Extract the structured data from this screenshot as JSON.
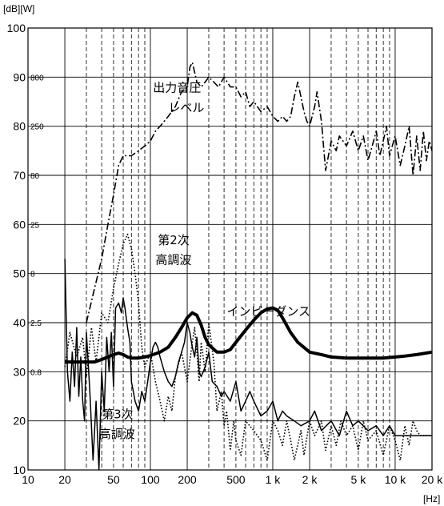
{
  "chart_data": {
    "type": "line",
    "title": "",
    "x_unit": "[Hz]",
    "y_unit_left": "[dB]",
    "y_unit_right": "[W]",
    "x_scale": "log",
    "xlim": [
      10,
      20000
    ],
    "ylim": [
      10,
      100
    ],
    "grid": true,
    "x_ticks": [
      {
        "v": 10,
        "label": "10"
      },
      {
        "v": 20,
        "label": "20"
      },
      {
        "v": 50,
        "label": "50"
      },
      {
        "v": 100,
        "label": "100"
      },
      {
        "v": 200,
        "label": "200"
      },
      {
        "v": 500,
        "label": "500"
      },
      {
        "v": 1000,
        "label": "1 k"
      },
      {
        "v": 2000,
        "label": "2 k"
      },
      {
        "v": 5000,
        "label": "5 k"
      },
      {
        "v": 10000,
        "label": "10 k"
      },
      {
        "v": 20000,
        "label": "20 k"
      }
    ],
    "y_ticks": [
      {
        "v": 10,
        "label": "10",
        "sub": ""
      },
      {
        "v": 20,
        "label": "20",
        "sub": ""
      },
      {
        "v": 30,
        "label": "30",
        "sub": "0.8"
      },
      {
        "v": 40,
        "label": "40",
        "sub": "2.5"
      },
      {
        "v": 50,
        "label": "50",
        "sub": "8"
      },
      {
        "v": 60,
        "label": "60",
        "sub": "25"
      },
      {
        "v": 70,
        "label": "70",
        "sub": "80"
      },
      {
        "v": 80,
        "label": "80",
        "sub": "250"
      },
      {
        "v": 90,
        "label": "90",
        "sub": "800"
      },
      {
        "v": 100,
        "label": "100",
        "sub": ""
      }
    ],
    "annotations": [
      {
        "text": "出力音圧",
        "x": 105,
        "y": 87
      },
      {
        "text": "レベル",
        "x": 140,
        "y": 83
      },
      {
        "text": "第2次",
        "x": 115,
        "y": 56
      },
      {
        "text": "高調波",
        "x": 110,
        "y": 52
      },
      {
        "text": "インピーダンス",
        "x": 420,
        "y": 41.5
      },
      {
        "text": "第3次",
        "x": 40,
        "y": 20.5
      },
      {
        "text": "高調波",
        "x": 38,
        "y": 16.5
      }
    ],
    "series": [
      {
        "name": "出力音圧レベル",
        "style": "dashdot",
        "width": 1.6,
        "x": [
          30,
          35,
          40,
          45,
          50,
          55,
          60,
          70,
          80,
          90,
          100,
          110,
          120,
          140,
          160,
          180,
          200,
          210,
          220,
          230,
          240,
          260,
          280,
          300,
          330,
          360,
          400,
          450,
          500,
          550,
          600,
          650,
          700,
          800,
          900,
          1000,
          1100,
          1200,
          1300,
          1400,
          1500,
          1600,
          1700,
          1800,
          1900,
          2000,
          2200,
          2300,
          2500,
          2700,
          2800,
          3000,
          3300,
          3500,
          4000,
          4500,
          5000,
          5500,
          6000,
          6500,
          7000,
          7500,
          8000,
          8500,
          9000,
          10000,
          11000,
          12000,
          13000,
          14000,
          15000,
          16000,
          17000,
          18000,
          19000,
          20000
        ],
        "y": [
          40,
          47,
          53,
          60,
          66,
          72,
          74,
          74,
          75,
          76,
          77,
          79,
          80,
          82,
          84,
          87,
          88,
          92,
          93,
          91,
          89,
          88,
          89,
          90,
          89,
          88,
          90,
          88,
          88,
          86,
          87,
          84,
          85,
          83,
          84,
          82,
          81,
          82,
          81,
          82,
          86,
          89,
          86,
          83,
          81,
          80,
          84,
          87,
          81,
          71,
          73,
          77,
          75,
          78,
          76,
          79,
          75,
          78,
          73,
          76,
          79,
          74,
          77,
          80,
          74,
          78,
          72,
          76,
          80,
          70,
          78,
          71,
          79,
          73,
          77,
          75
        ]
      },
      {
        "name": "第2次高調波",
        "style": "dotted",
        "width": 1.6,
        "x": [
          20,
          22,
          25,
          28,
          30,
          33,
          36,
          40,
          45,
          50,
          55,
          60,
          65,
          70,
          75,
          80,
          85,
          90,
          100,
          110,
          120,
          130,
          140,
          150,
          160,
          180,
          200,
          220,
          230,
          240,
          250,
          260,
          280,
          300,
          330,
          350,
          380,
          400,
          420,
          450,
          480,
          500,
          550,
          600,
          700,
          800,
          900,
          1000,
          1100,
          1200,
          1300,
          1400,
          1500,
          1700,
          1800,
          2000,
          2200,
          2500,
          2700,
          3000,
          3300,
          3600,
          4000,
          4500,
          5000,
          5500,
          6000,
          7000,
          8000,
          9000,
          10000,
          11000,
          12000,
          13000,
          14000,
          15000,
          16000,
          18000,
          20000
        ],
        "y": [
          31,
          38,
          33,
          37,
          29,
          39,
          32,
          42,
          40,
          47,
          52,
          56,
          58,
          55,
          50,
          44,
          35,
          31,
          34,
          28,
          24,
          20,
          25,
          22,
          29,
          34,
          28,
          36,
          39,
          34,
          28,
          36,
          30,
          40,
          32,
          22,
          26,
          19,
          22,
          14,
          20,
          16,
          13,
          20,
          18,
          16,
          12,
          20,
          18,
          15,
          20,
          16,
          12,
          18,
          13,
          20,
          17,
          20,
          14,
          19,
          15,
          20,
          17,
          19,
          14,
          20,
          16,
          18,
          13,
          19,
          16,
          12,
          19,
          15,
          20,
          18,
          17,
          17,
          17
        ]
      },
      {
        "name": "第3次高調波",
        "style": "solid",
        "width": 1.5,
        "x": [
          20,
          21,
          22,
          23,
          24,
          25,
          26,
          27,
          28,
          29,
          30,
          32,
          34,
          36,
          38,
          40,
          42,
          44,
          46,
          48,
          50,
          52,
          55,
          58,
          60,
          62,
          65,
          68,
          70,
          75,
          80,
          85,
          90,
          95,
          100,
          105,
          110,
          115,
          120,
          130,
          140,
          150,
          160,
          170,
          180,
          190,
          200,
          210,
          220,
          230,
          240,
          250,
          260,
          280,
          300,
          320,
          350,
          380,
          400,
          450,
          500,
          550,
          600,
          650,
          700,
          800,
          900,
          1000,
          1100,
          1200,
          1300,
          1500,
          1700,
          2000,
          2200,
          2500,
          3000,
          3500,
          4000,
          4500,
          5000,
          6000,
          7000,
          8000,
          9000,
          10000,
          12000,
          14000,
          16000,
          18000,
          20000
        ],
        "y": [
          53,
          30,
          24,
          34,
          27,
          39,
          25,
          33,
          24,
          20,
          38,
          26,
          12,
          24,
          10,
          30,
          22,
          37,
          30,
          38,
          27,
          43,
          44,
          42,
          45,
          43,
          39,
          36,
          28,
          24,
          22,
          26,
          24,
          28,
          32,
          35,
          36,
          35,
          33,
          30,
          28,
          27,
          29,
          32,
          34,
          36,
          40,
          38,
          35,
          33,
          37,
          30,
          29,
          31,
          34,
          28,
          27,
          25,
          26,
          24,
          28,
          22,
          24,
          26,
          24,
          21,
          22,
          24,
          20,
          22,
          21,
          20,
          19,
          20,
          22,
          18,
          20,
          17,
          22,
          19,
          20,
          18,
          19,
          17,
          19,
          17,
          17,
          17,
          17,
          17,
          17
        ]
      },
      {
        "name": "インピーダンス",
        "style": "solid",
        "width": 4,
        "x": [
          20,
          25,
          30,
          35,
          40,
          45,
          50,
          55,
          60,
          65,
          70,
          80,
          90,
          100,
          120,
          140,
          160,
          180,
          200,
          220,
          240,
          260,
          280,
          300,
          350,
          400,
          450,
          500,
          600,
          700,
          800,
          900,
          1000,
          1100,
          1200,
          1400,
          1600,
          2000,
          2500,
          3000,
          4000,
          5000,
          6000,
          8000,
          10000,
          12000,
          15000,
          20000
        ],
        "y": [
          32,
          32,
          32,
          32,
          32.5,
          33,
          33.5,
          33.8,
          33.5,
          33,
          32.8,
          32.8,
          33,
          33.3,
          34,
          35,
          37,
          39,
          41,
          42,
          41.5,
          39.5,
          37,
          35.5,
          34,
          34,
          34.5,
          36,
          38.5,
          40.5,
          42,
          42.8,
          43,
          42.5,
          41,
          38,
          36,
          34,
          33.5,
          33,
          32.8,
          32.8,
          32.8,
          32.8,
          33,
          33.2,
          33.5,
          34
        ]
      }
    ]
  }
}
